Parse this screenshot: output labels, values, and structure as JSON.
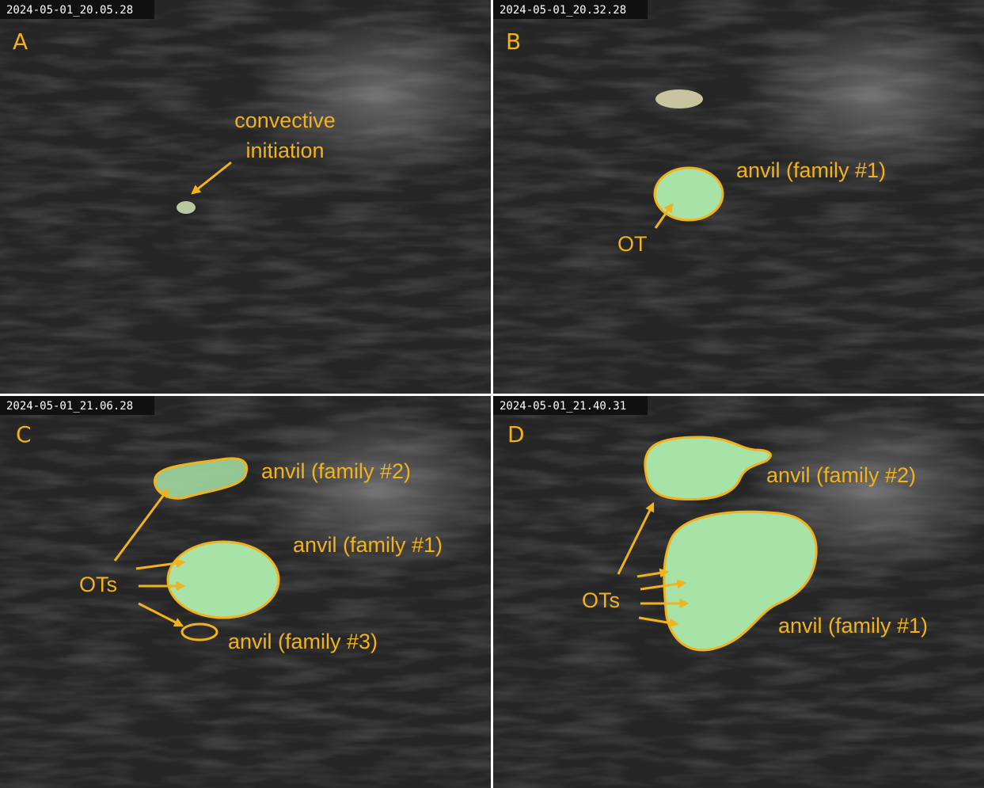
{
  "panels": [
    {
      "timestamp": "2024-05-01_20.05.28",
      "letter": "A",
      "labels": [
        "convective",
        "initiation"
      ]
    },
    {
      "timestamp": "2024-05-01_20.32.28",
      "letter": "B",
      "labels": [
        "anvil (family #1)",
        "OT"
      ]
    },
    {
      "timestamp": "2024-05-01_21.06.28",
      "letter": "C",
      "labels": [
        "anvil (family #2)",
        "anvil (family #1)",
        "OTs",
        "anvil (family #3)"
      ]
    },
    {
      "timestamp": "2024-05-01_21.40.31",
      "letter": "D",
      "labels": [
        "anvil (family #2)",
        "OTs",
        "anvil (family #1)"
      ]
    }
  ]
}
